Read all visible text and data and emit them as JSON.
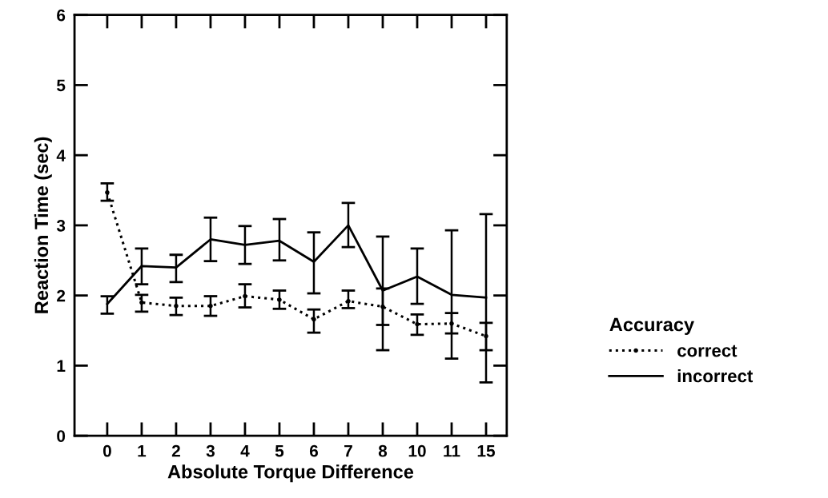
{
  "chart_data": {
    "type": "line",
    "xlabel": "Absolute Torque Difference",
    "ylabel": "Reaction Time (sec)",
    "legend_title": "Accuracy",
    "legend": "right",
    "categories": [
      "0",
      "1",
      "2",
      "3",
      "4",
      "5",
      "6",
      "7",
      "8",
      "10",
      "11",
      "15"
    ],
    "ylim": [
      0,
      6
    ],
    "yticks": [
      0,
      1,
      2,
      3,
      4,
      5,
      6
    ],
    "grid": false,
    "series": [
      {
        "name": "correct",
        "color": "#000000",
        "line_style": "dotted",
        "marker": "circle",
        "values": [
          3.47,
          1.9,
          1.85,
          1.85,
          1.99,
          1.94,
          1.66,
          1.92,
          1.84,
          1.59,
          1.6,
          1.42
        ],
        "errors": [
          [
            3.35,
            3.6
          ],
          [
            1.77,
            2.01
          ],
          [
            1.72,
            1.97
          ],
          [
            1.71,
            1.99
          ],
          [
            1.83,
            2.16
          ],
          [
            1.81,
            2.07
          ],
          [
            1.47,
            1.8
          ],
          [
            1.82,
            2.07
          ],
          [
            1.58,
            2.1
          ],
          [
            1.44,
            1.73
          ],
          [
            1.46,
            1.75
          ],
          [
            1.22,
            1.61
          ]
        ]
      },
      {
        "name": "incorrect",
        "color": "#000000",
        "line_style": "solid",
        "marker": "none",
        "values": [
          1.88,
          2.42,
          2.4,
          2.8,
          2.72,
          2.78,
          2.48,
          3.0,
          2.07,
          2.27,
          2.01,
          1.97
        ],
        "errors": [
          [
            1.74,
            1.99
          ],
          [
            2.16,
            2.67
          ],
          [
            2.19,
            2.58
          ],
          [
            2.49,
            3.11
          ],
          [
            2.45,
            2.99
          ],
          [
            2.5,
            3.09
          ],
          [
            2.03,
            2.9
          ],
          [
            2.69,
            3.32
          ],
          [
            1.22,
            2.84
          ],
          [
            1.88,
            2.67
          ],
          [
            1.1,
            2.93
          ],
          [
            0.76,
            3.16
          ]
        ]
      }
    ]
  }
}
